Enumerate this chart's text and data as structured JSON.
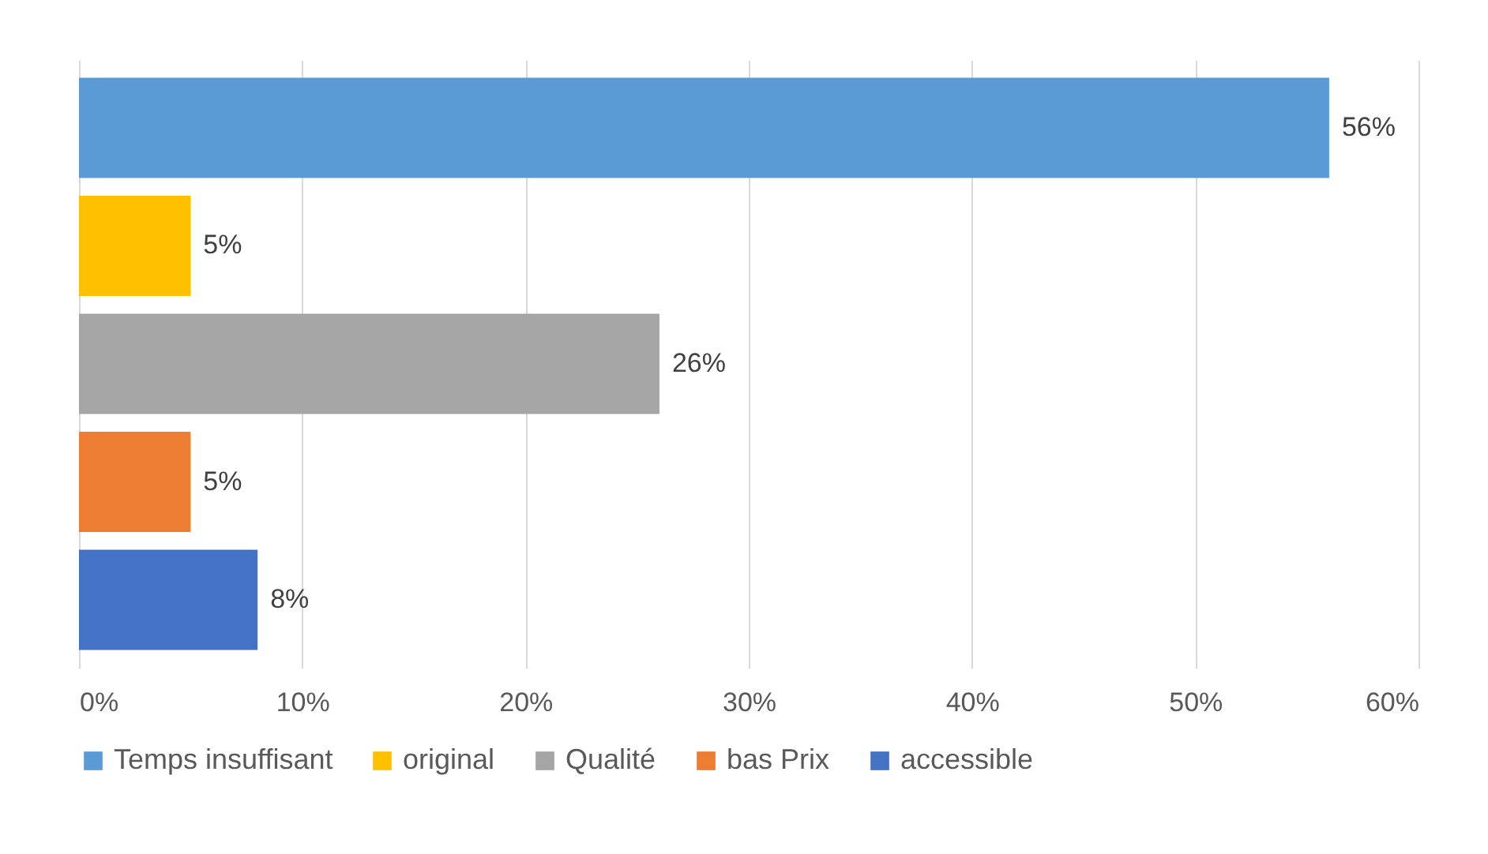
{
  "chart_data": {
    "type": "bar",
    "orientation": "horizontal",
    "categories": [
      null
    ],
    "series": [
      {
        "name": "Temps insuffisant",
        "color": "#5b9bd5",
        "values": [
          56
        ],
        "value_labels": [
          "56%"
        ]
      },
      {
        "name": "original",
        "color": "#ffc000",
        "values": [
          5
        ],
        "value_labels": [
          "5%"
        ]
      },
      {
        "name": "Qualité",
        "color": "#a5a5a5",
        "values": [
          26
        ],
        "value_labels": [
          "26%"
        ]
      },
      {
        "name": "bas Prix",
        "color": "#ed7d31",
        "values": [
          5
        ],
        "value_labels": [
          "5%"
        ]
      },
      {
        "name": "accessible",
        "color": "#4472c4",
        "values": [
          8
        ],
        "value_labels": [
          "8%"
        ]
      }
    ],
    "xlim": [
      0,
      60
    ],
    "xticks": [
      {
        "value": 0,
        "label": "0%"
      },
      {
        "value": 10,
        "label": "10%"
      },
      {
        "value": 20,
        "label": "20%"
      },
      {
        "value": 30,
        "label": "30%"
      },
      {
        "value": 40,
        "label": "40%"
      },
      {
        "value": 50,
        "label": "50%"
      },
      {
        "value": 60,
        "label": "60%"
      }
    ],
    "grid": "x",
    "legend": "bottom"
  }
}
